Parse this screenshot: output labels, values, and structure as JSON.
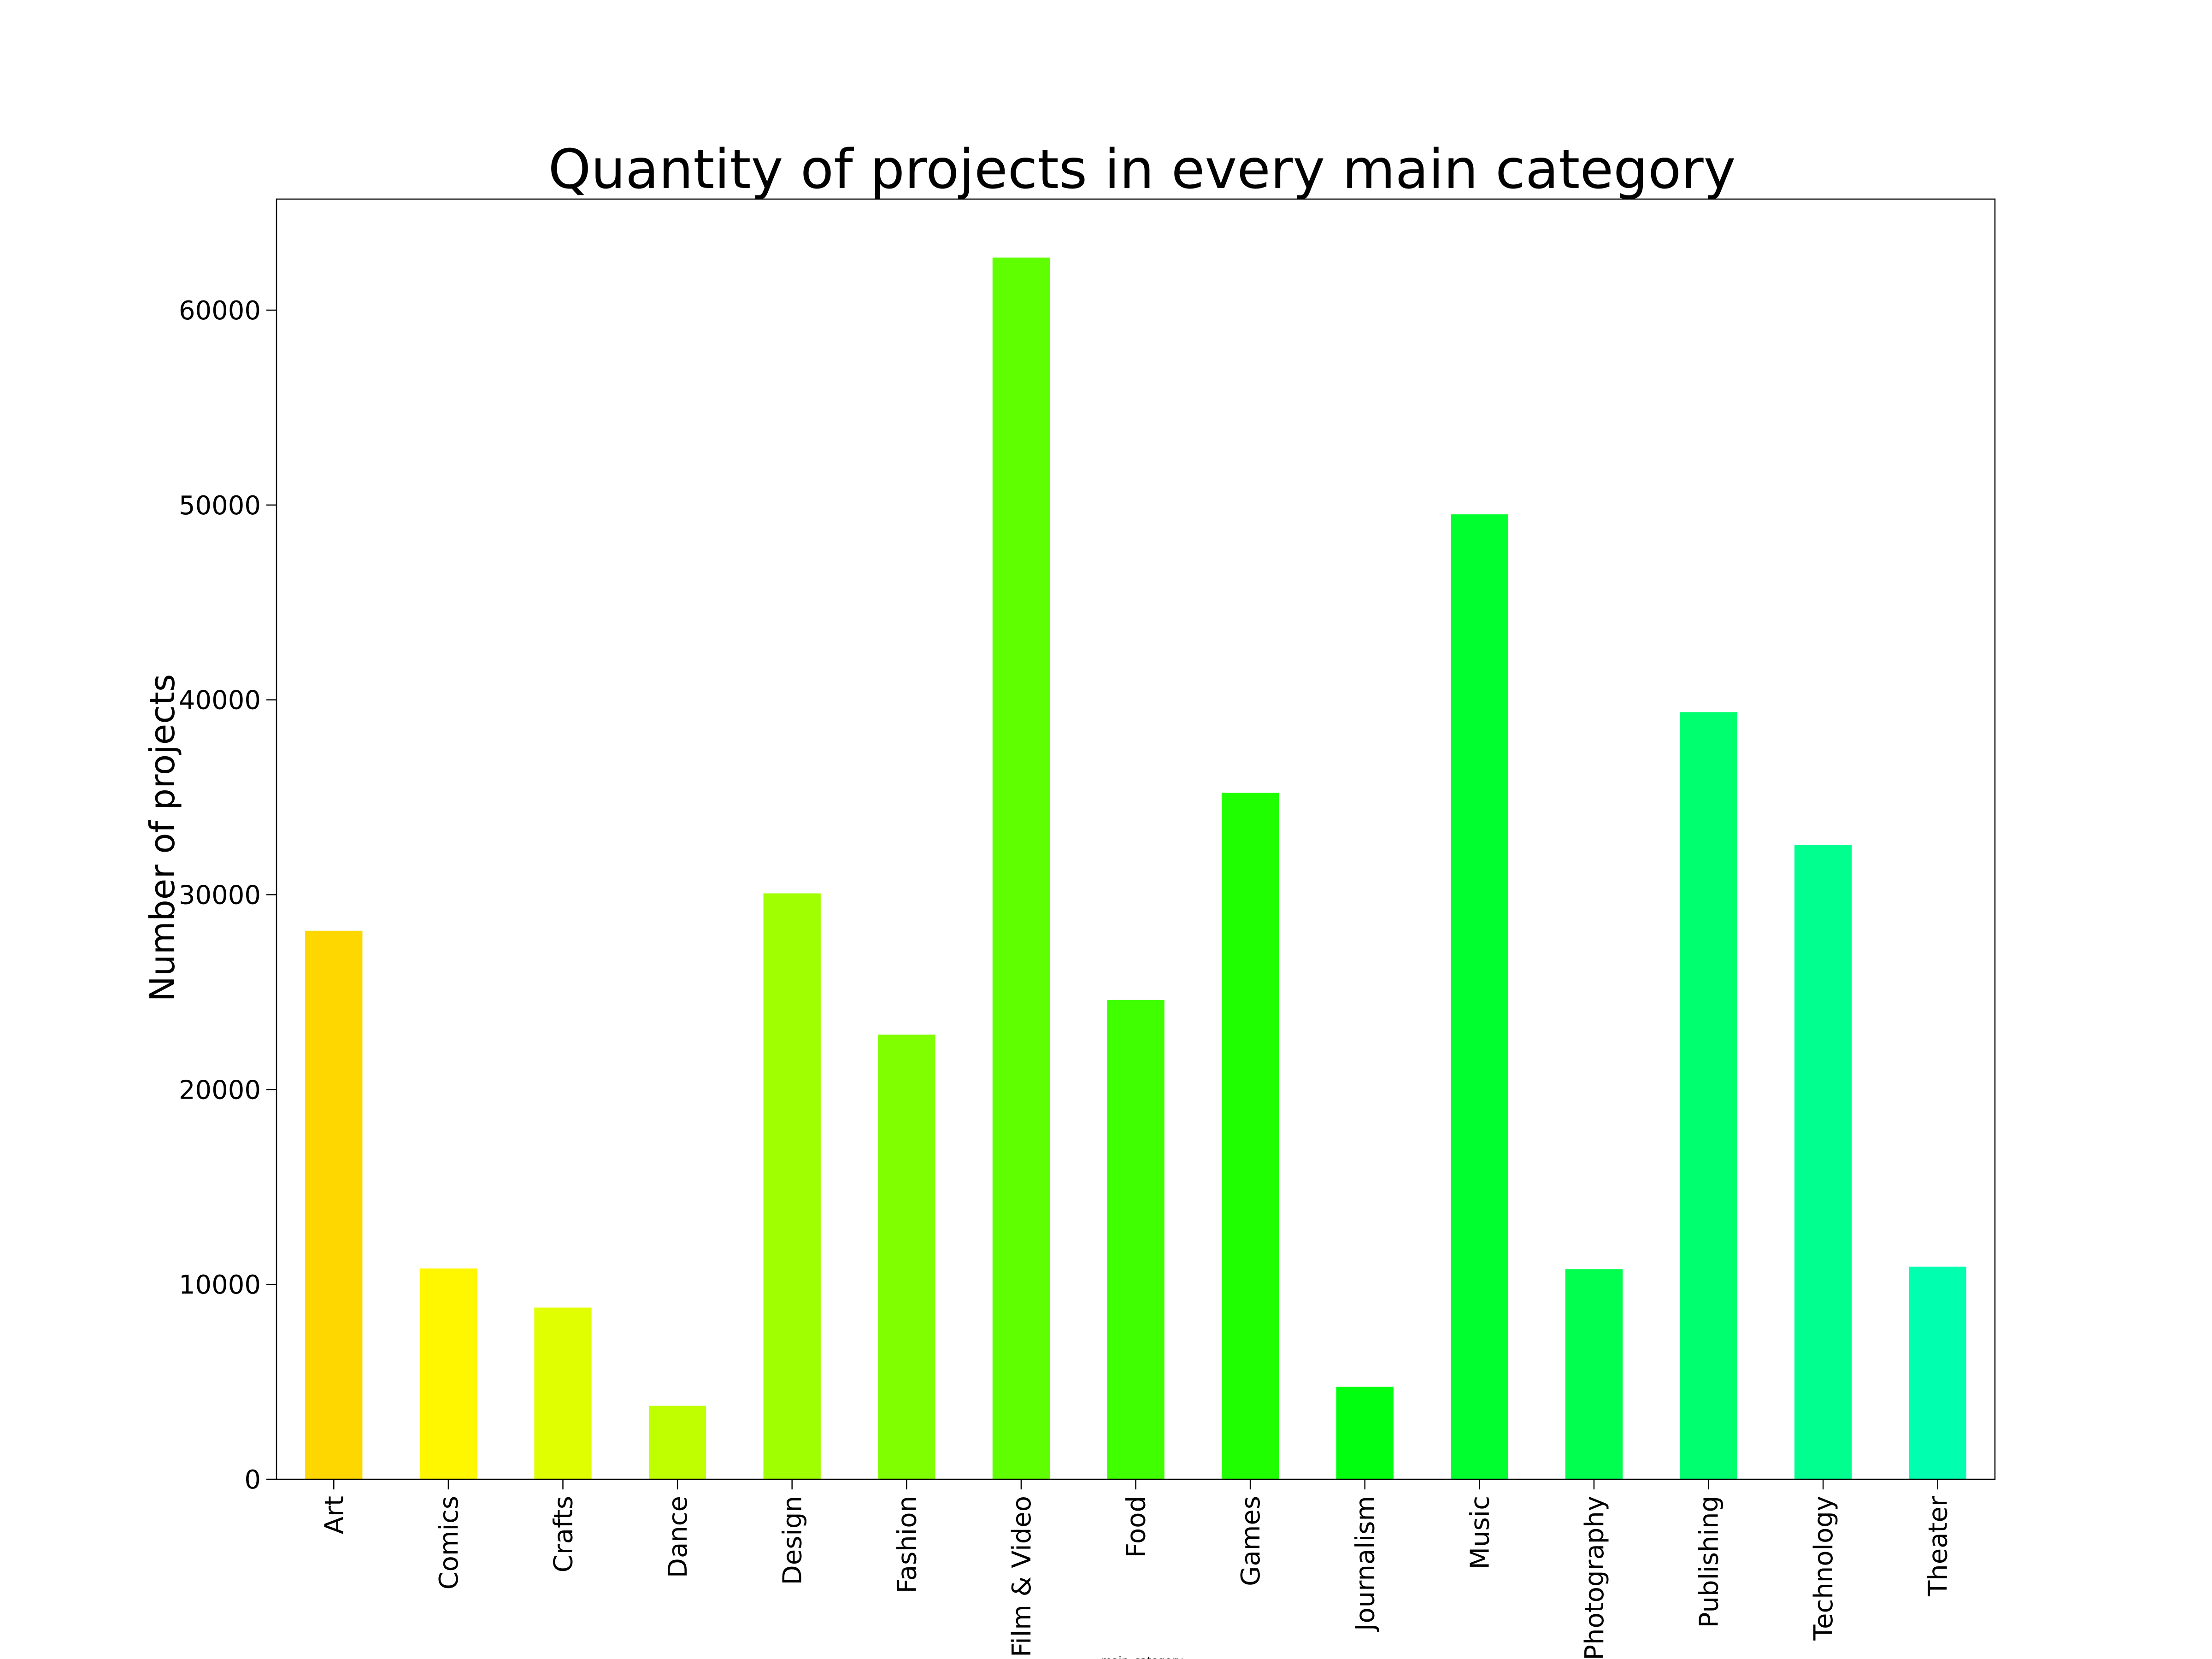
{
  "chart_data": {
    "type": "bar",
    "title": "Quantity of projects in every main category",
    "xlabel": "main_category",
    "ylabel": "Number of projects",
    "categories": [
      "Art",
      "Comics",
      "Crafts",
      "Dance",
      "Design",
      "Fashion",
      "Film & Video",
      "Food",
      "Games",
      "Journalism",
      "Music",
      "Photography",
      "Publishing",
      "Technology",
      "Theater"
    ],
    "values": [
      28150,
      10820,
      8810,
      3770,
      30070,
      22820,
      62700,
      24600,
      35230,
      4750,
      49520,
      10780,
      39370,
      32560,
      10910
    ],
    "colors": [
      "#ffd700",
      "#fff700",
      "#e0ff00",
      "#c0ff00",
      "#a0ff00",
      "#80ff00",
      "#60ff00",
      "#40ff00",
      "#20ff00",
      "#00ff0e",
      "#00ff2e",
      "#00ff4e",
      "#00ff6e",
      "#00ff8e",
      "#00ffae"
    ],
    "yticks": [
      0,
      10000,
      20000,
      30000,
      40000,
      50000,
      60000
    ],
    "ylim": [
      0,
      65700
    ],
    "grid": false,
    "legend": false
  }
}
